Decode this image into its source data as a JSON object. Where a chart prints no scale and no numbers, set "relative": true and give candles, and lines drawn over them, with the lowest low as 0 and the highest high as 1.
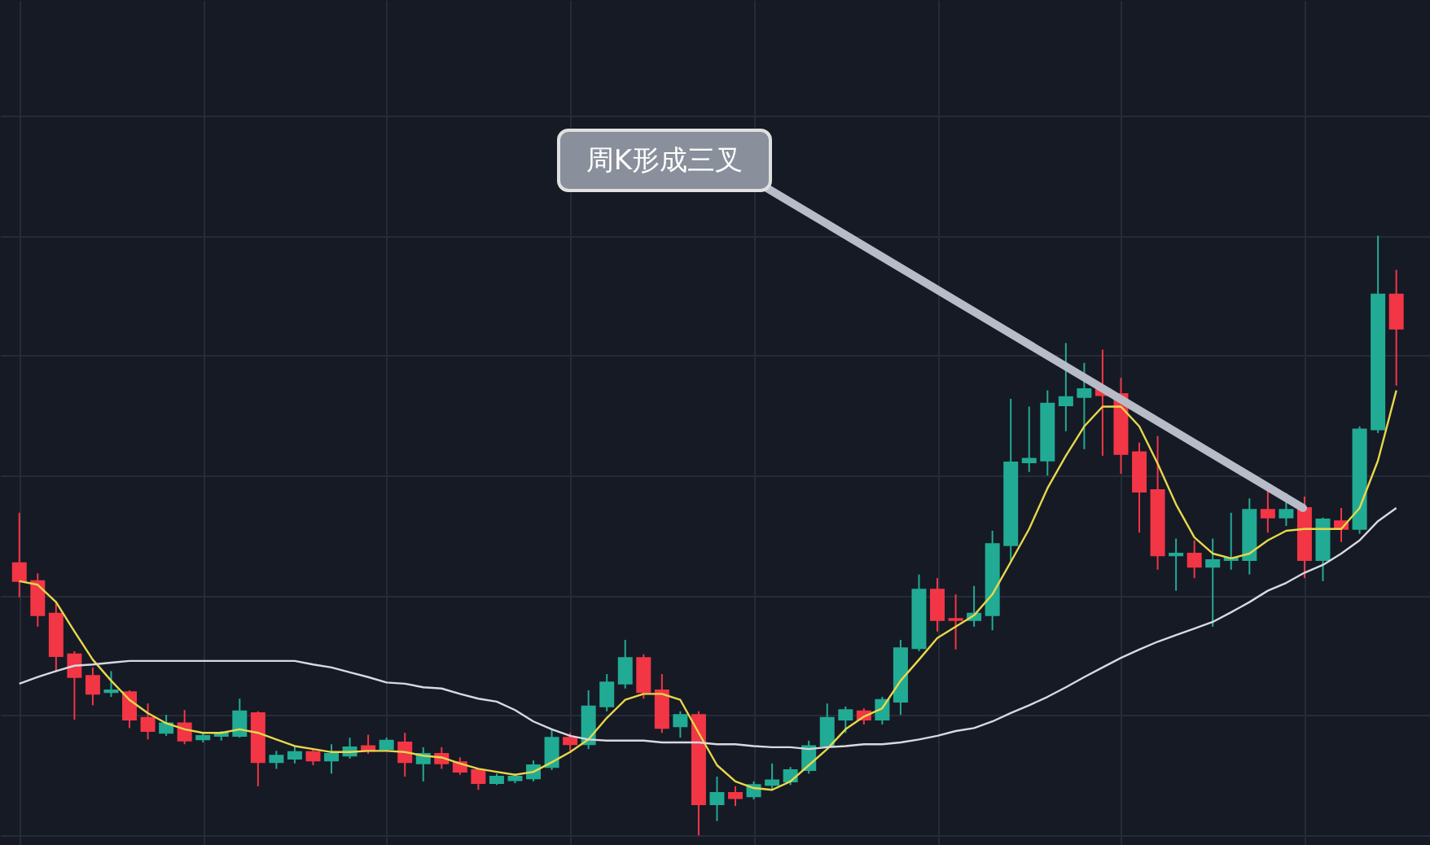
{
  "chart_data": {
    "type": "candlestick",
    "relative": true,
    "grid": true,
    "annotations": [
      "周K形成三叉"
    ],
    "categories": [
      null,
      null,
      null,
      null,
      null,
      null,
      null,
      null,
      null,
      null,
      null,
      null,
      null,
      null,
      null,
      null,
      null,
      null,
      null,
      null,
      null,
      null,
      null,
      null,
      null,
      null,
      null,
      null,
      null,
      null,
      null,
      null,
      null,
      null,
      null,
      null,
      null,
      null,
      null,
      null,
      null,
      null,
      null,
      null,
      null,
      null,
      null,
      null,
      null,
      null,
      null,
      null,
      null,
      null,
      null,
      null,
      null,
      null,
      null,
      null,
      null,
      null,
      null,
      null,
      null,
      null,
      null,
      null,
      null,
      null,
      null,
      null,
      null,
      null,
      null,
      null
    ],
    "ohlc": [
      [
        0.454,
        0.538,
        0.397,
        0.424
      ],
      [
        0.424,
        0.437,
        0.348,
        0.367
      ],
      [
        0.37,
        0.389,
        0.272,
        0.299
      ],
      [
        0.302,
        0.307,
        0.193,
        0.264
      ],
      [
        0.266,
        0.28,
        0.217,
        0.236
      ],
      [
        0.239,
        0.274,
        0.231,
        0.242
      ],
      [
        0.239,
        0.242,
        0.179,
        0.193
      ],
      [
        0.196,
        0.22,
        0.16,
        0.174
      ],
      [
        0.171,
        0.201,
        0.166,
        0.187
      ],
      [
        0.187,
        0.209,
        0.152,
        0.158
      ],
      [
        0.16,
        0.171,
        0.155,
        0.166
      ],
      [
        0.166,
        0.174,
        0.158,
        0.171
      ],
      [
        0.166,
        0.228,
        0.163,
        0.207
      ],
      [
        0.204,
        0.207,
        0.082,
        0.122
      ],
      [
        0.122,
        0.141,
        0.111,
        0.133
      ],
      [
        0.128,
        0.149,
        0.12,
        0.139
      ],
      [
        0.139,
        0.144,
        0.117,
        0.125
      ],
      [
        0.125,
        0.152,
        0.103,
        0.136
      ],
      [
        0.133,
        0.163,
        0.128,
        0.147
      ],
      [
        0.149,
        0.168,
        0.136,
        0.141
      ],
      [
        0.144,
        0.163,
        0.141,
        0.158
      ],
      [
        0.155,
        0.171,
        0.098,
        0.122
      ],
      [
        0.12,
        0.147,
        0.09,
        0.136
      ],
      [
        0.136,
        0.147,
        0.111,
        0.12
      ],
      [
        0.122,
        0.13,
        0.101,
        0.106
      ],
      [
        0.109,
        0.111,
        0.076,
        0.087
      ],
      [
        0.087,
        0.103,
        0.084,
        0.098
      ],
      [
        0.092,
        0.103,
        0.087,
        0.098
      ],
      [
        0.095,
        0.125,
        0.09,
        0.117
      ],
      [
        0.114,
        0.177,
        0.109,
        0.163
      ],
      [
        0.163,
        0.171,
        0.141,
        0.152
      ],
      [
        0.152,
        0.242,
        0.144,
        0.215
      ],
      [
        0.215,
        0.269,
        0.207,
        0.255
      ],
      [
        0.253,
        0.326,
        0.245,
        0.296
      ],
      [
        0.296,
        0.302,
        0.228,
        0.239
      ],
      [
        0.242,
        0.269,
        0.171,
        0.179
      ],
      [
        0.182,
        0.207,
        0.163,
        0.201
      ],
      [
        0.201,
        0.207,
        0,
        0.052
      ],
      [
        0.052,
        0.098,
        0.024,
        0.071
      ],
      [
        0.071,
        0.082,
        0.049,
        0.062
      ],
      [
        0.065,
        0.09,
        0.06,
        0.084
      ],
      [
        0.084,
        0.12,
        0.076,
        0.092
      ],
      [
        0.09,
        0.114,
        0.084,
        0.109
      ],
      [
        0.109,
        0.158,
        0.103,
        0.149
      ],
      [
        0.149,
        0.22,
        0.144,
        0.196
      ],
      [
        0.193,
        0.215,
        0.171,
        0.209
      ],
      [
        0.207,
        0.212,
        0.185,
        0.193
      ],
      [
        0.193,
        0.231,
        0.185,
        0.226
      ],
      [
        0.223,
        0.326,
        0.201,
        0.312
      ],
      [
        0.312,
        0.435,
        0.307,
        0.41
      ],
      [
        0.41,
        0.429,
        0.34,
        0.359
      ],
      [
        0.361,
        0.402,
        0.31,
        0.359
      ],
      [
        0.359,
        0.416,
        0.348,
        0.37
      ],
      [
        0.367,
        0.508,
        0.342,
        0.486
      ],
      [
        0.484,
        0.728,
        0.456,
        0.622
      ],
      [
        0.622,
        0.715,
        0.606,
        0.628
      ],
      [
        0.625,
        0.742,
        0.6,
        0.72
      ],
      [
        0.717,
        0.821,
        0.674,
        0.731
      ],
      [
        0.731,
        0.788,
        0.644,
        0.744
      ],
      [
        0.744,
        0.81,
        0.633,
        0.734
      ],
      [
        0.736,
        0.763,
        0.603,
        0.636
      ],
      [
        0.639,
        0.655,
        0.505,
        0.573
      ],
      [
        0.576,
        0.666,
        0.443,
        0.467
      ],
      [
        0.467,
        0.495,
        0.408,
        0.47
      ],
      [
        0.47,
        0.492,
        0.429,
        0.448
      ],
      [
        0.448,
        0.495,
        0.348,
        0.459
      ],
      [
        0.459,
        0.538,
        0.443,
        0.462
      ],
      [
        0.459,
        0.562,
        0.435,
        0.543
      ],
      [
        0.543,
        0.581,
        0.505,
        0.53
      ],
      [
        0.53,
        0.571,
        0.516,
        0.543
      ],
      [
        0.546,
        0.565,
        0.429,
        0.459
      ],
      [
        0.459,
        0.53,
        0.424,
        0.527
      ],
      [
        0.524,
        0.546,
        0.489,
        0.511
      ],
      [
        0.511,
        0.682,
        0.503,
        0.677
      ],
      [
        0.677,
        1,
        0.671,
        0.902
      ],
      [
        0.902,
        0.943,
        0.75,
        0.845
      ]
    ],
    "colors": [
      "#f23645",
      "#f23645",
      "#f23645",
      "#f23645",
      "#f23645",
      "#22ab94",
      "#f23645",
      "#f23645",
      "#22ab94",
      "#f23645",
      "#22ab94",
      "#22ab94",
      "#22ab94",
      "#f23645",
      "#22ab94",
      "#22ab94",
      "#f23645",
      "#22ab94",
      "#22ab94",
      "#f23645",
      "#22ab94",
      "#f23645",
      "#22ab94",
      "#f23645",
      "#f23645",
      "#f23645",
      "#22ab94",
      "#22ab94",
      "#22ab94",
      "#22ab94",
      "#f23645",
      "#22ab94",
      "#22ab94",
      "#22ab94",
      "#f23645",
      "#f23645",
      "#22ab94",
      "#f23645",
      "#22ab94",
      "#f23645",
      "#22ab94",
      "#22ab94",
      "#22ab94",
      "#22ab94",
      "#22ab94",
      "#22ab94",
      "#f23645",
      "#22ab94",
      "#22ab94",
      "#22ab94",
      "#f23645",
      "#f23645",
      "#22ab94",
      "#22ab94",
      "#22ab94",
      "#22ab94",
      "#22ab94",
      "#22ab94",
      "#22ab94",
      "#f23645",
      "#f23645",
      "#f23645",
      "#f23645",
      "#22ab94",
      "#f23645",
      "#22ab94",
      "#22ab94",
      "#22ab94",
      "#f23645",
      "#22ab94",
      "#f23645",
      "#22ab94",
      "#f23645",
      "#22ab94",
      "#22ab94",
      "#f23645"
    ],
    "series": [
      {
        "type": "line",
        "color": "#e8d84a",
        "marker": "none",
        "values": [
          0.424,
          0.418,
          0.389,
          0.34,
          0.293,
          0.258,
          0.226,
          0.204,
          0.187,
          0.177,
          0.171,
          0.171,
          0.177,
          0.171,
          0.16,
          0.149,
          0.144,
          0.139,
          0.139,
          0.141,
          0.141,
          0.139,
          0.133,
          0.13,
          0.12,
          0.111,
          0.106,
          0.101,
          0.106,
          0.122,
          0.139,
          0.16,
          0.196,
          0.226,
          0.236,
          0.236,
          0.226,
          0.171,
          0.117,
          0.09,
          0.079,
          0.076,
          0.09,
          0.117,
          0.144,
          0.177,
          0.198,
          0.212,
          0.258,
          0.293,
          0.329,
          0.348,
          0.367,
          0.402,
          0.456,
          0.511,
          0.579,
          0.633,
          0.682,
          0.715,
          0.715,
          0.682,
          0.62,
          0.552,
          0.497,
          0.47,
          0.462,
          0.47,
          0.492,
          0.508,
          0.511,
          0.511,
          0.511,
          0.546,
          0.625,
          0.742
        ]
      },
      {
        "type": "line",
        "color": "#d9d9e0",
        "marker": "none",
        "values": [
          0.253,
          0.264,
          0.274,
          0.283,
          0.285,
          0.288,
          0.291,
          0.291,
          0.291,
          0.291,
          0.291,
          0.291,
          0.291,
          0.291,
          0.291,
          0.291,
          0.285,
          0.28,
          0.272,
          0.264,
          0.255,
          0.253,
          0.247,
          0.245,
          0.236,
          0.228,
          0.223,
          0.209,
          0.19,
          0.177,
          0.166,
          0.16,
          0.158,
          0.158,
          0.158,
          0.155,
          0.155,
          0.155,
          0.152,
          0.152,
          0.149,
          0.147,
          0.147,
          0.144,
          0.147,
          0.149,
          0.152,
          0.152,
          0.155,
          0.16,
          0.166,
          0.174,
          0.179,
          0.19,
          0.204,
          0.217,
          0.231,
          0.247,
          0.264,
          0.28,
          0.296,
          0.31,
          0.323,
          0.334,
          0.345,
          0.356,
          0.372,
          0.389,
          0.408,
          0.421,
          0.438,
          0.451,
          0.47,
          0.492,
          0.524,
          0.546
        ]
      }
    ]
  }
}
